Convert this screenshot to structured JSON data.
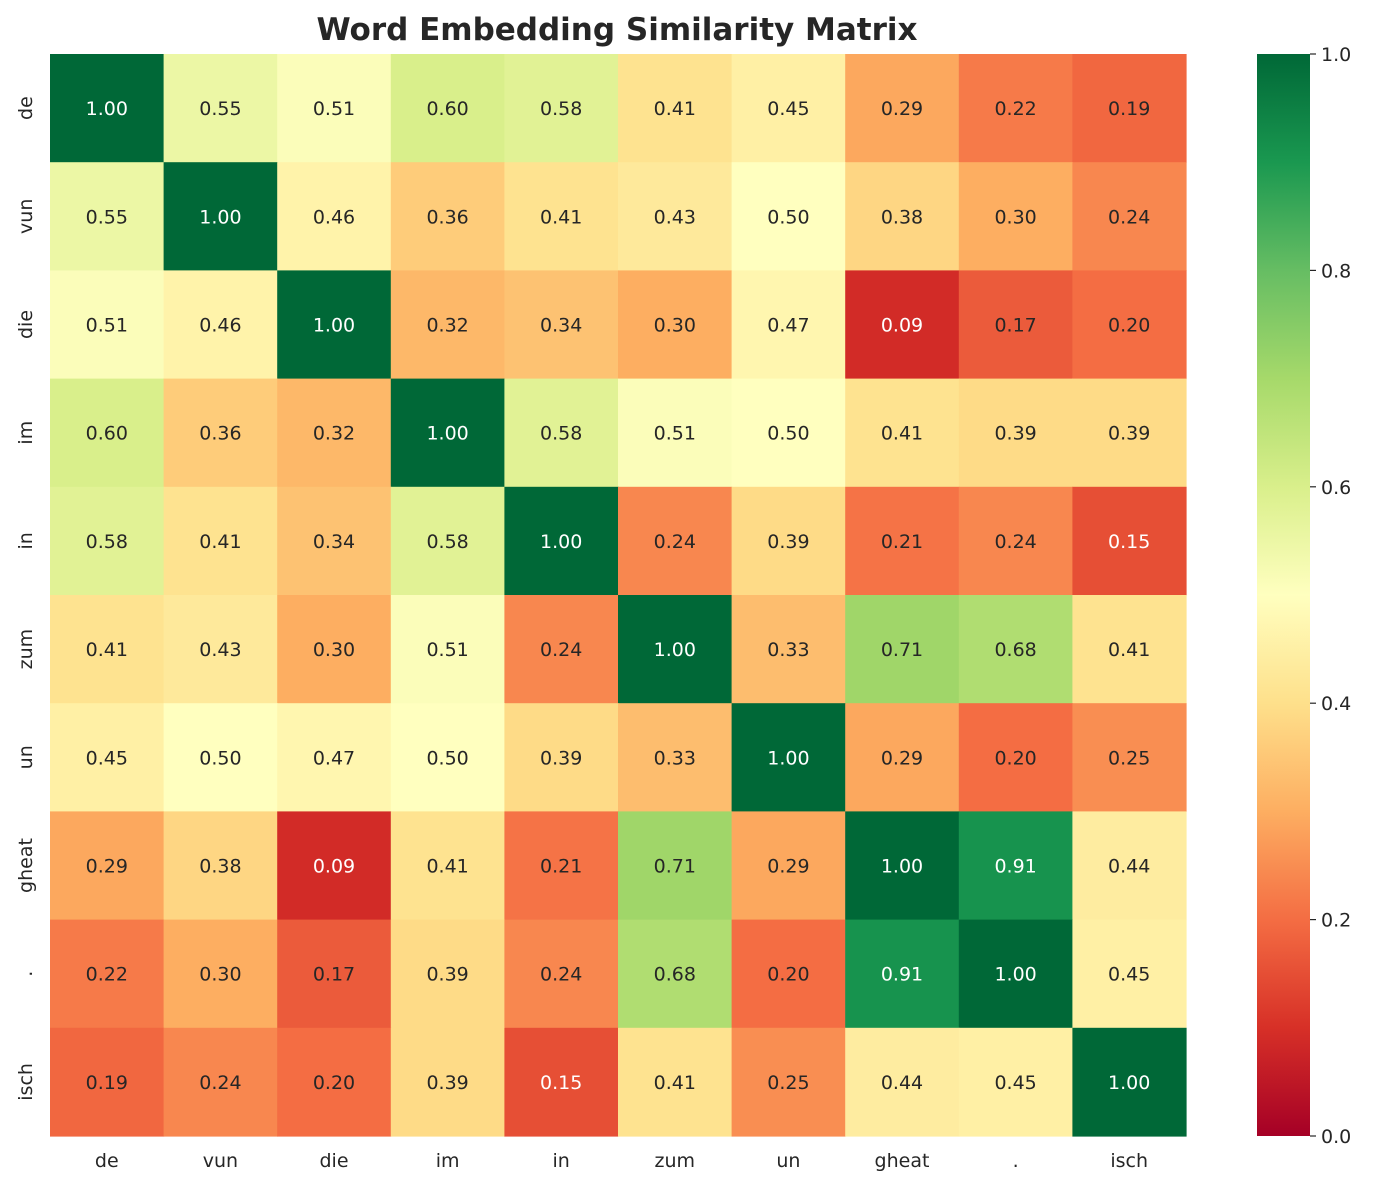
{
  "chart_data": {
    "type": "heatmap",
    "title": "Word Embedding Similarity Matrix",
    "xlabel": "",
    "ylabel": "",
    "x_categories": [
      "de",
      "vun",
      "die",
      "im",
      "in",
      "zum",
      "un",
      "gheat",
      ".",
      "isch"
    ],
    "y_categories": [
      "de",
      "vun",
      "die",
      "im",
      "in",
      "zum",
      "un",
      "gheat",
      ".",
      "isch"
    ],
    "values": [
      [
        1.0,
        0.55,
        0.51,
        0.6,
        0.58,
        0.41,
        0.45,
        0.29,
        0.22,
        0.19
      ],
      [
        0.55,
        1.0,
        0.46,
        0.36,
        0.41,
        0.43,
        0.5,
        0.38,
        0.3,
        0.24
      ],
      [
        0.51,
        0.46,
        1.0,
        0.32,
        0.34,
        0.3,
        0.47,
        0.09,
        0.17,
        0.2
      ],
      [
        0.6,
        0.36,
        0.32,
        1.0,
        0.58,
        0.51,
        0.5,
        0.41,
        0.39,
        0.39
      ],
      [
        0.58,
        0.41,
        0.34,
        0.58,
        1.0,
        0.24,
        0.39,
        0.21,
        0.24,
        0.15
      ],
      [
        0.41,
        0.43,
        0.3,
        0.51,
        0.24,
        1.0,
        0.33,
        0.71,
        0.68,
        0.41
      ],
      [
        0.45,
        0.5,
        0.47,
        0.5,
        0.39,
        0.33,
        1.0,
        0.29,
        0.2,
        0.25
      ],
      [
        0.29,
        0.38,
        0.09,
        0.41,
        0.21,
        0.71,
        0.29,
        1.0,
        0.91,
        0.44
      ],
      [
        0.22,
        0.3,
        0.17,
        0.39,
        0.24,
        0.68,
        0.2,
        0.91,
        1.0,
        0.45
      ],
      [
        0.19,
        0.24,
        0.2,
        0.39,
        0.15,
        0.41,
        0.25,
        0.44,
        0.45,
        1.0
      ]
    ],
    "value_format": "2 decimals",
    "colormap": "RdYlGn",
    "vmin": 0.0,
    "vmax": 1.0,
    "colorbar_ticks": [
      "0.0",
      "0.2",
      "0.4",
      "0.6",
      "0.8",
      "1.0"
    ],
    "colorbar_placement": "right",
    "grid": false
  }
}
